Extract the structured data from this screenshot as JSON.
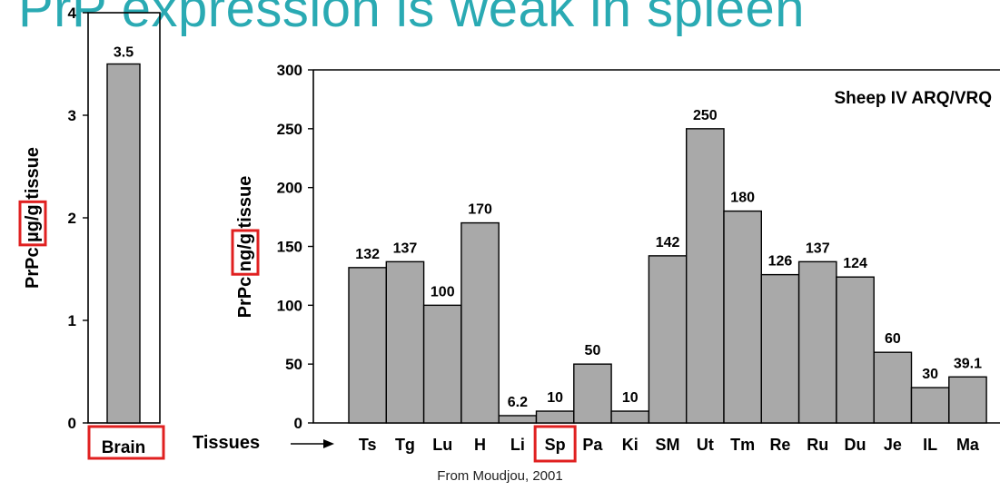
{
  "slide": {
    "title": "PrP expression is weak in spleen",
    "credit": "From Moudjou, 2001"
  },
  "colors": {
    "bar_fill": "#a9a9a9",
    "bar_stroke": "#000000",
    "highlight": "#e02020",
    "title": "#2aaab3"
  },
  "chart_data": [
    {
      "type": "bar",
      "title": "",
      "ylabel_parts": [
        "PrPc ",
        "µg/g",
        " tissue"
      ],
      "ylim": [
        0,
        4
      ],
      "yticks": [
        0,
        1,
        2,
        3,
        4
      ],
      "categories": [
        "Brain"
      ],
      "values": [
        3.5
      ],
      "value_labels": [
        "3.5"
      ],
      "highlighted_category": "Brain",
      "highlighted_unit": "µg/g"
    },
    {
      "type": "bar",
      "title": "Sheep IV ARQ/VRQ",
      "xlabel": "Tissues",
      "ylabel_parts": [
        "PrPc ",
        "ng/g",
        " tissue"
      ],
      "ylim": [
        0,
        300
      ],
      "yticks": [
        0,
        50,
        100,
        150,
        200,
        250,
        300
      ],
      "categories": [
        "Ts",
        "Tg",
        "Lu",
        "H",
        "Li",
        "Sp",
        "Pa",
        "Ki",
        "SM",
        "Ut",
        "Tm",
        "Re",
        "Ru",
        "Du",
        "Je",
        "IL",
        "Ma"
      ],
      "values": [
        132,
        137,
        100,
        170,
        6.2,
        10,
        50,
        10,
        142,
        250,
        180,
        126,
        137,
        124,
        60,
        30,
        39.1
      ],
      "value_labels": [
        "132",
        "137",
        "100",
        "170",
        "6.2",
        "10",
        "50",
        "10",
        "142",
        "250",
        "180",
        "126",
        "137",
        "124",
        "60",
        "30",
        "39.1"
      ],
      "highlighted_category": "Sp",
      "highlighted_unit": "ng/g"
    }
  ]
}
